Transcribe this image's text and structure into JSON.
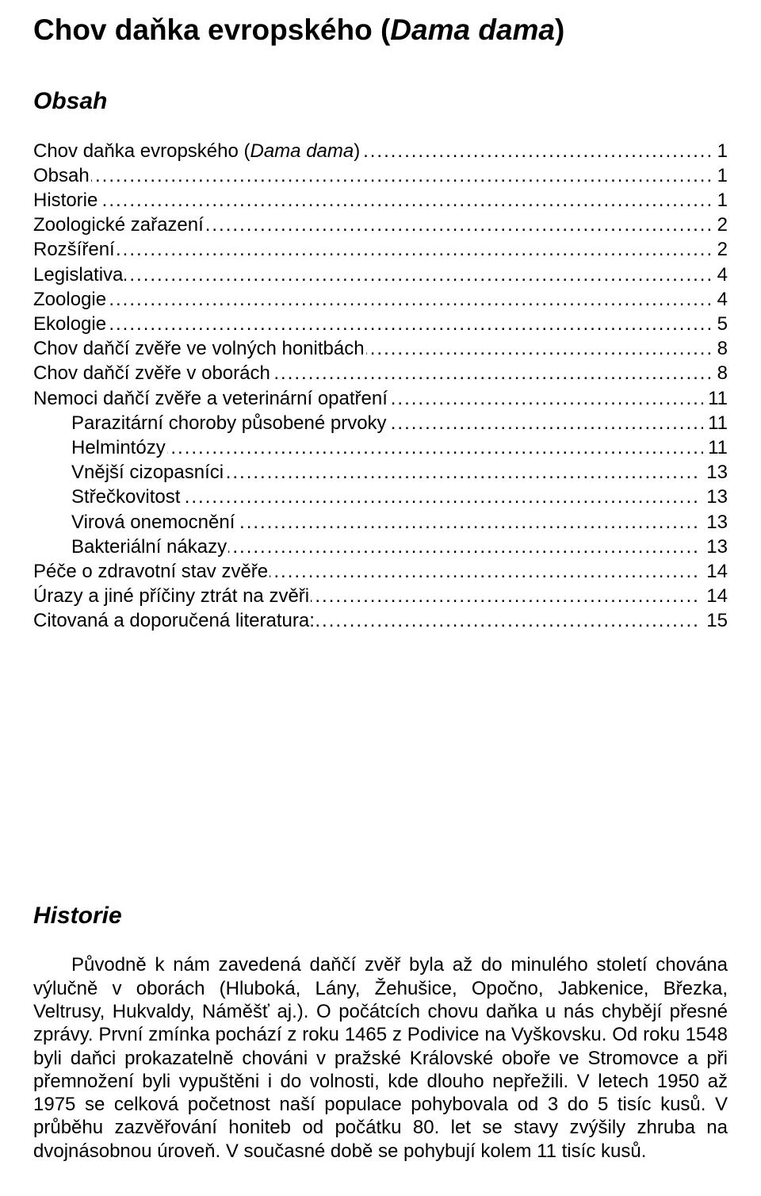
{
  "title": {
    "prefix": "Chov daňka evropského (",
    "latin": "Dama dama",
    "suffix": ")"
  },
  "obsah_heading": "Obsah",
  "toc": [
    {
      "label_prefix": "Chov daňka evropského (",
      "label_italic": "Dama dama",
      "label_suffix": ")",
      "indent": 0,
      "page": "1"
    },
    {
      "label": "Obsah",
      "indent": 0,
      "page": "1"
    },
    {
      "label": "Historie",
      "indent": 0,
      "page": "1"
    },
    {
      "label": "Zoologické zařazení",
      "indent": 0,
      "page": "2"
    },
    {
      "label": "Rozšíření",
      "indent": 0,
      "page": "2"
    },
    {
      "label": "Legislativa",
      "indent": 0,
      "page": "4"
    },
    {
      "label": "Zoologie",
      "indent": 0,
      "page": "4"
    },
    {
      "label": "Ekologie",
      "indent": 0,
      "page": "5"
    },
    {
      "label": "Chov daňčí zvěře ve volných honitbách",
      "indent": 0,
      "page": "8"
    },
    {
      "label": "Chov daňčí zvěře v oborách",
      "indent": 0,
      "page": "8"
    },
    {
      "label": "Nemoci daňčí zvěře a veterinární opatření",
      "indent": 0,
      "page": "11"
    },
    {
      "label": "Parazitární choroby působené prvoky",
      "indent": 1,
      "page": "11"
    },
    {
      "label": "Helmintózy",
      "indent": 1,
      "page": "11"
    },
    {
      "label": "Vnější cizopasníci",
      "indent": 1,
      "page": "13"
    },
    {
      "label": "Střečkovitost",
      "indent": 1,
      "page": "13"
    },
    {
      "label": "Virová onemocnění",
      "indent": 1,
      "page": "13"
    },
    {
      "label": "Bakteriální nákazy",
      "indent": 1,
      "page": "13"
    },
    {
      "label": "Péče o zdravotní stav zvěře",
      "indent": 0,
      "page": "14"
    },
    {
      "label": "Úrazy a jiné příčiny ztrát na zvěři",
      "indent": 0,
      "page": "14"
    },
    {
      "label": "Citovaná a doporučená literatura:",
      "indent": 0,
      "page": "15"
    }
  ],
  "historie_heading": "Historie",
  "historie_body": "Původně k nám zavedená daňčí zvěř byla až do minulého století chována výlučně v oborách (Hluboká, Lány, Žehušice, Opočno, Jabkenice, Březka, Veltrusy, Hukvaldy, Náměšť aj.). O počátcích chovu daňka u nás chybějí přesné zprávy. První zmínka pochází z roku 1465 z Podivice na Vyškovsku. Od roku 1548 byli daňci prokazatelně chováni v pražské Královské oboře ve Stromovce a při přemnožení byli vypuštěni i do volnosti, kde dlouho nepřežili. V letech 1950 až 1975 se celková početnost naší populace pohybovala od 3 do 5 tisíc kusů. V průběhu zazvěřování honiteb od počátku 80. let se stavy zvýšily zhruba na dvojnásobnou úroveň. V současné době se pohybují kolem 11 tisíc kusů."
}
